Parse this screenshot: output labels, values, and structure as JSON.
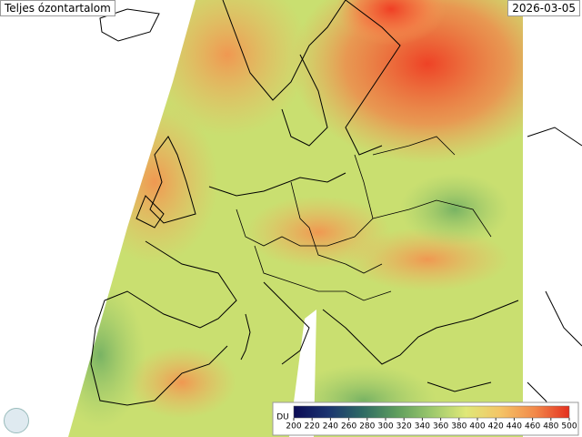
{
  "title": "Teljes ózontartalom",
  "date": "2026-03-05",
  "colorbar": {
    "unit": "DU",
    "ticks": [
      200,
      220,
      240,
      260,
      280,
      300,
      320,
      340,
      360,
      380,
      400,
      420,
      440,
      460,
      480,
      500
    ],
    "colors": [
      "#0b0b55",
      "#1b3470",
      "#2e6a64",
      "#5f9e5e",
      "#9cc86c",
      "#dfe878",
      "#f4c466",
      "#f2894a",
      "#e4301f"
    ]
  }
}
